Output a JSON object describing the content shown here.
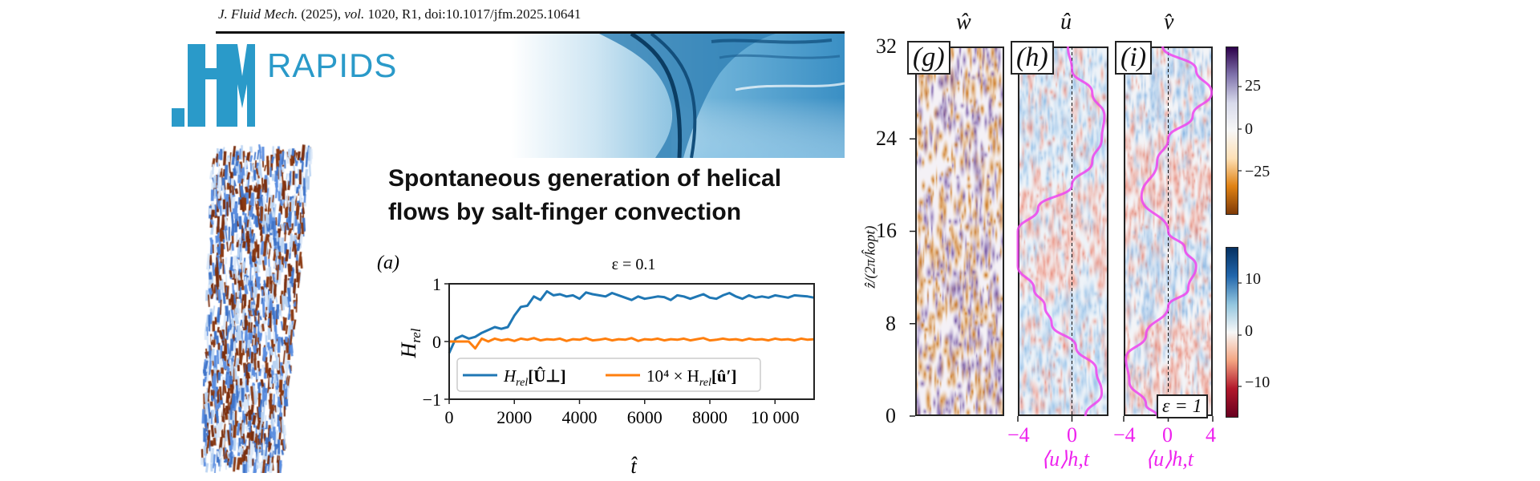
{
  "header": {
    "journal": "J. Fluid Mech.",
    "year": "(2025),",
    "vol_label": "vol.",
    "citation": "1020, R1, doi:10.1017/jfm.2025.10641"
  },
  "logo": {
    "text": "JFM",
    "brand": "RAPIDS",
    "color": "#2a9ac9"
  },
  "title": {
    "line1": "Spontaneous generation of helical",
    "line2": "flows by salt-finger convection"
  },
  "chart_data": [
    {
      "type": "line",
      "panel_label": "(a)",
      "title": "ε = 0.1",
      "xlabel": "t̂",
      "ylabel": "H",
      "ylabel_sub": "rel",
      "xlim": [
        0,
        11200
      ],
      "ylim": [
        -1,
        1
      ],
      "xticks": [
        0,
        2000,
        4000,
        6000,
        8000,
        10000
      ],
      "xtick_labels": [
        "0",
        "2000",
        "4000",
        "6000",
        "8000",
        "10 000"
      ],
      "yticks": [
        1,
        0,
        -1
      ],
      "ytick_labels": [
        "1",
        "0",
        "−1"
      ],
      "legend_position": "lower-center",
      "x": [
        0,
        200,
        400,
        600,
        800,
        1000,
        1200,
        1400,
        1600,
        1800,
        2000,
        2200,
        2400,
        2600,
        2800,
        3000,
        3200,
        3400,
        3600,
        3800,
        4000,
        4200,
        4400,
        4600,
        4800,
        5000,
        5200,
        5400,
        5600,
        5800,
        6000,
        6200,
        6400,
        6600,
        6800,
        7000,
        7200,
        7400,
        7600,
        7800,
        8000,
        8200,
        8400,
        8600,
        8800,
        9000,
        9200,
        9400,
        9600,
        9800,
        10000,
        10200,
        10400,
        10600,
        10800,
        11000,
        11200
      ],
      "series": [
        {
          "name": "H_rel[Û⊥]",
          "legend_main": "H",
          "legend_sub": "rel",
          "legend_arg": "[Û⊥]",
          "color": "#1f77b4",
          "values": [
            -0.2,
            0.05,
            0.1,
            0.05,
            0.08,
            0.15,
            0.2,
            0.25,
            0.22,
            0.25,
            0.45,
            0.6,
            0.62,
            0.78,
            0.72,
            0.87,
            0.8,
            0.82,
            0.78,
            0.8,
            0.74,
            0.85,
            0.82,
            0.8,
            0.78,
            0.84,
            0.8,
            0.76,
            0.72,
            0.78,
            0.74,
            0.76,
            0.78,
            0.77,
            0.72,
            0.8,
            0.78,
            0.74,
            0.78,
            0.82,
            0.76,
            0.74,
            0.8,
            0.84,
            0.78,
            0.74,
            0.8,
            0.76,
            0.78,
            0.76,
            0.8,
            0.78,
            0.76,
            0.8,
            0.79,
            0.78,
            0.76
          ]
        },
        {
          "name": "10⁴ × H_rel[û′]",
          "legend_main": "10⁴ × H",
          "legend_sub": "rel",
          "legend_arg": "[û′]",
          "color": "#ff7f0e",
          "values": [
            0,
            0,
            0,
            0,
            -0.12,
            0.05,
            0.0,
            0.05,
            0.02,
            0.04,
            0.01,
            0.05,
            0.03,
            0.06,
            0.02,
            0.04,
            0.03,
            0.05,
            0.01,
            0.04,
            0.03,
            0.06,
            0.02,
            0.03,
            0.05,
            0.02,
            0.04,
            0.03,
            0.06,
            0.01,
            0.04,
            0.03,
            0.05,
            0.02,
            0.04,
            0.03,
            0.05,
            0.02,
            0.04,
            0.06,
            0.02,
            0.03,
            0.05,
            0.03,
            0.04,
            0.02,
            0.05,
            0.03,
            0.04,
            0.02,
            0.05,
            0.03,
            0.04,
            0.02,
            0.05,
            0.03,
            0.04
          ]
        }
      ]
    },
    {
      "type": "heatmap",
      "panels": [
        {
          "label": "(g)",
          "field": "ŵ"
        },
        {
          "label": "(h)",
          "field": "û",
          "profile_xlabel": "⟨u⟩h,t"
        },
        {
          "label": "(i)",
          "field": "v̂",
          "profile_xlabel": "⟨u⟩h,t"
        }
      ],
      "ylabel": "ẑ/(2π/k̂opt)",
      "ylim": [
        0,
        32
      ],
      "yticks": [
        "32",
        "24",
        "16",
        "8",
        "0"
      ],
      "profile_xlim_h": [
        -4,
        2.7
      ],
      "profile_xlim_i": [
        -4,
        4
      ],
      "profile_xticks_h": [
        "−4",
        "0"
      ],
      "profile_xticks_i": [
        "−4",
        "0",
        "4"
      ],
      "profile_color": "#ee44ee",
      "annotation": "ε = 1",
      "profile_h": {
        "z": [
          0,
          2,
          4,
          6,
          8,
          9.5,
          11,
          13,
          16,
          18,
          20,
          22,
          24,
          26,
          28,
          30,
          32
        ],
        "u": [
          1,
          2.2,
          1.8,
          0.3,
          -1.5,
          -2,
          -2.8,
          -4,
          -4,
          -2.5,
          0,
          1.5,
          2.2,
          2.4,
          1.5,
          0,
          -0.3
        ]
      },
      "profile_i": {
        "z": [
          0,
          1,
          3,
          5,
          7,
          9.5,
          11,
          13,
          14.5,
          16,
          19,
          22,
          24,
          26,
          28,
          30,
          32
        ],
        "u": [
          -1,
          -2,
          -3.5,
          -3.8,
          -2,
          0,
          1.8,
          2.5,
          1.5,
          0,
          -2.4,
          -1,
          0,
          2.2,
          3.9,
          2.5,
          -0.5
        ]
      },
      "colorbar_w": {
        "ticks": [
          "25",
          "0",
          "−25"
        ],
        "range": [
          -48,
          48
        ],
        "cmap": "PuOr"
      },
      "colorbar_uv": {
        "ticks": [
          "10",
          "0",
          "−10"
        ],
        "range": [
          -16.5,
          16.5
        ],
        "cmap": "RdBu"
      }
    }
  ]
}
